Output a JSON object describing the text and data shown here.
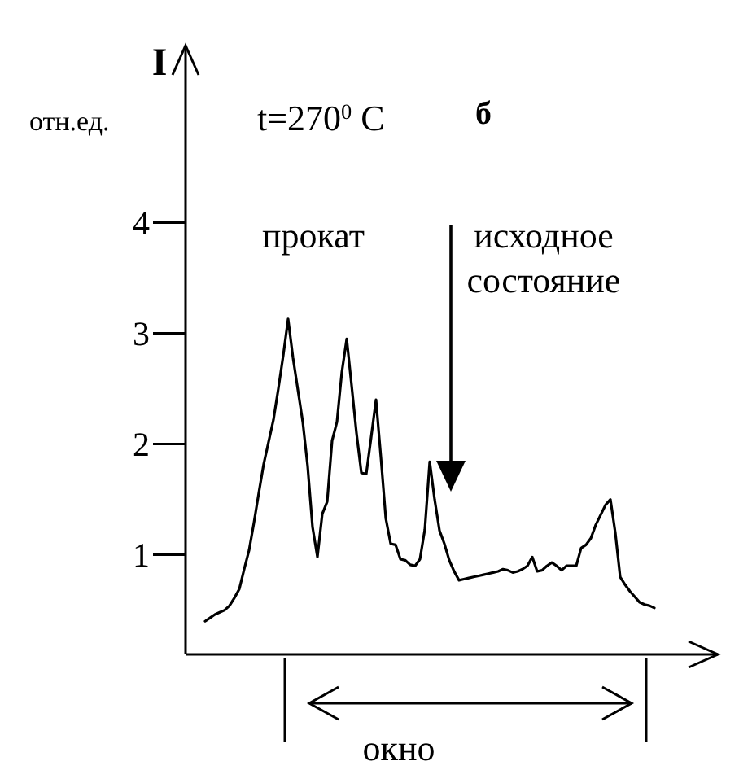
{
  "chart_data": {
    "type": "line",
    "title": "t=270$^{0}$ C",
    "ylabel": "I",
    "annotations": [
      "отн.ед.",
      "б",
      "прокат",
      "исходное состояние",
      "окно"
    ],
    "categories": [
      null,
      null,
      null,
      null,
      null,
      null,
      null,
      null,
      null,
      null,
      null,
      null,
      null,
      null,
      null,
      null,
      null,
      null,
      null,
      null,
      null,
      null,
      null,
      null,
      null,
      null,
      null,
      null,
      null,
      null,
      null,
      null,
      null,
      null,
      null,
      null,
      null,
      null,
      null,
      null,
      null,
      null,
      null,
      null,
      null,
      null,
      null,
      null,
      null,
      null,
      null,
      null,
      null,
      null,
      null,
      null,
      null,
      null,
      null,
      null,
      null,
      null,
      null,
      null,
      null,
      null,
      null,
      null,
      null,
      null,
      null,
      null,
      null,
      null,
      null,
      null,
      null,
      null,
      null,
      null,
      null,
      null,
      null,
      null,
      null,
      null,
      null,
      null,
      null,
      null,
      null,
      null,
      null
    ],
    "series": [
      {
        "color": "#000000",
        "values": [
          0.4,
          0.43,
          0.46,
          0.48,
          0.5,
          0.54,
          0.61,
          0.69,
          0.87,
          1.04,
          1.29,
          1.56,
          1.82,
          2.02,
          2.22,
          2.5,
          2.8,
          3.13,
          2.78,
          2.49,
          2.2,
          1.8,
          1.25,
          0.98,
          1.37,
          1.48,
          2.03,
          2.2,
          2.65,
          2.95,
          2.53,
          2.1,
          1.74,
          1.73,
          2.06,
          2.4,
          1.88,
          1.33,
          1.1,
          1.09,
          0.96,
          0.95,
          0.91,
          0.9,
          0.96,
          1.23,
          1.84,
          1.5,
          1.22,
          1.1,
          0.95,
          0.85,
          0.77,
          0.78,
          0.79,
          0.8,
          0.81,
          0.82,
          0.83,
          0.84,
          0.85,
          0.87,
          0.86,
          0.84,
          0.85,
          0.87,
          0.9,
          0.98,
          0.85,
          0.86,
          0.9,
          0.93,
          0.9,
          0.86,
          0.9,
          0.9,
          0.9,
          1.06,
          1.09,
          1.15,
          1.27,
          1.36,
          1.45,
          1.5,
          1.2,
          0.8,
          0.73,
          0.67,
          0.62,
          0.57,
          0.55,
          0.54,
          0.52
        ]
      }
    ],
    "ylim": [
      0.1,
      5.6
    ],
    "yticks": [
      1,
      2,
      3,
      4
    ],
    "grid": false,
    "marker": "none",
    "line_style": "solid"
  }
}
